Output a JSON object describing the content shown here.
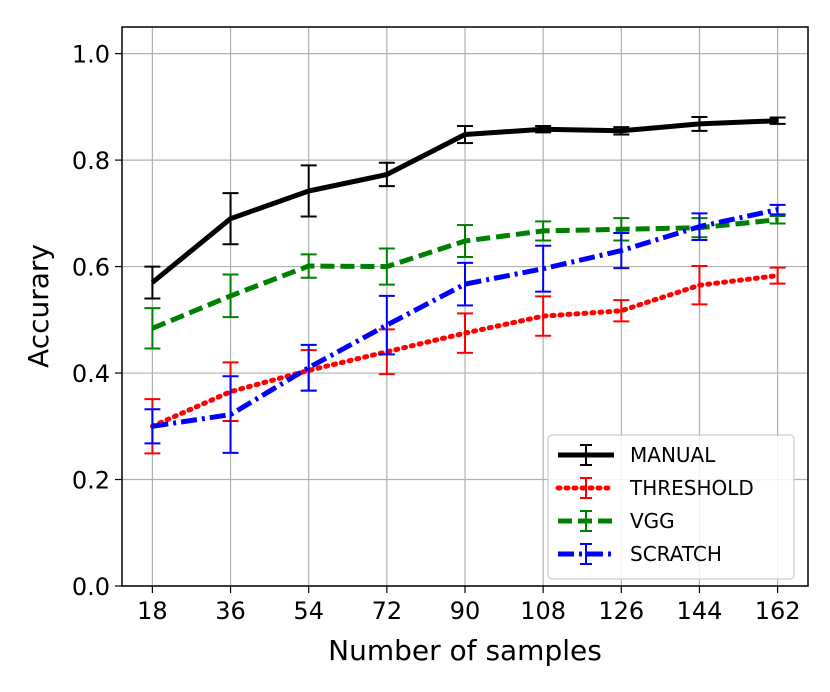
{
  "chart_data": {
    "type": "line",
    "title": "",
    "xlabel": "Number of samples",
    "ylabel": "Accurary",
    "categories": [
      "18",
      "36",
      "54",
      "72",
      "90",
      "108",
      "126",
      "144",
      "162"
    ],
    "x": [
      18,
      36,
      54,
      72,
      90,
      108,
      126,
      144,
      162
    ],
    "xlim": [
      11,
      169
    ],
    "ylim": [
      0.0,
      1.05
    ],
    "yticks": [
      0.0,
      0.2,
      0.4,
      0.6,
      0.8,
      1.0
    ],
    "ytick_labels": [
      "0.0",
      "0.2",
      "0.4",
      "0.6",
      "0.8",
      "1.0"
    ],
    "grid": true,
    "legend_position": "lower-right",
    "series": [
      {
        "name": "MANUAL",
        "color": "#000000",
        "style": "solid",
        "values": [
          0.57,
          0.69,
          0.742,
          0.773,
          0.848,
          0.858,
          0.855,
          0.868,
          0.874
        ],
        "errors": [
          0.03,
          0.048,
          0.048,
          0.022,
          0.016,
          0.006,
          0.007,
          0.013,
          0.006
        ]
      },
      {
        "name": "THRESHOLD",
        "color": "#ff0000",
        "style": "dotted",
        "values": [
          0.3,
          0.365,
          0.405,
          0.44,
          0.475,
          0.507,
          0.517,
          0.565,
          0.583
        ],
        "errors": [
          0.051,
          0.055,
          0.038,
          0.042,
          0.037,
          0.037,
          0.02,
          0.036,
          0.015
        ]
      },
      {
        "name": "VGG",
        "color": "#008000",
        "style": "dashed",
        "values": [
          0.484,
          0.545,
          0.601,
          0.6,
          0.648,
          0.667,
          0.67,
          0.673,
          0.688
        ],
        "errors": [
          0.038,
          0.04,
          0.022,
          0.034,
          0.03,
          0.018,
          0.021,
          0.018,
          0.007
        ]
      },
      {
        "name": "SCRATCH",
        "color": "#0000ff",
        "style": "dashdot",
        "values": [
          0.3,
          0.322,
          0.41,
          0.49,
          0.567,
          0.596,
          0.63,
          0.675,
          0.707
        ],
        "errors": [
          0.032,
          0.072,
          0.043,
          0.055,
          0.04,
          0.043,
          0.033,
          0.025,
          0.009
        ]
      }
    ]
  }
}
